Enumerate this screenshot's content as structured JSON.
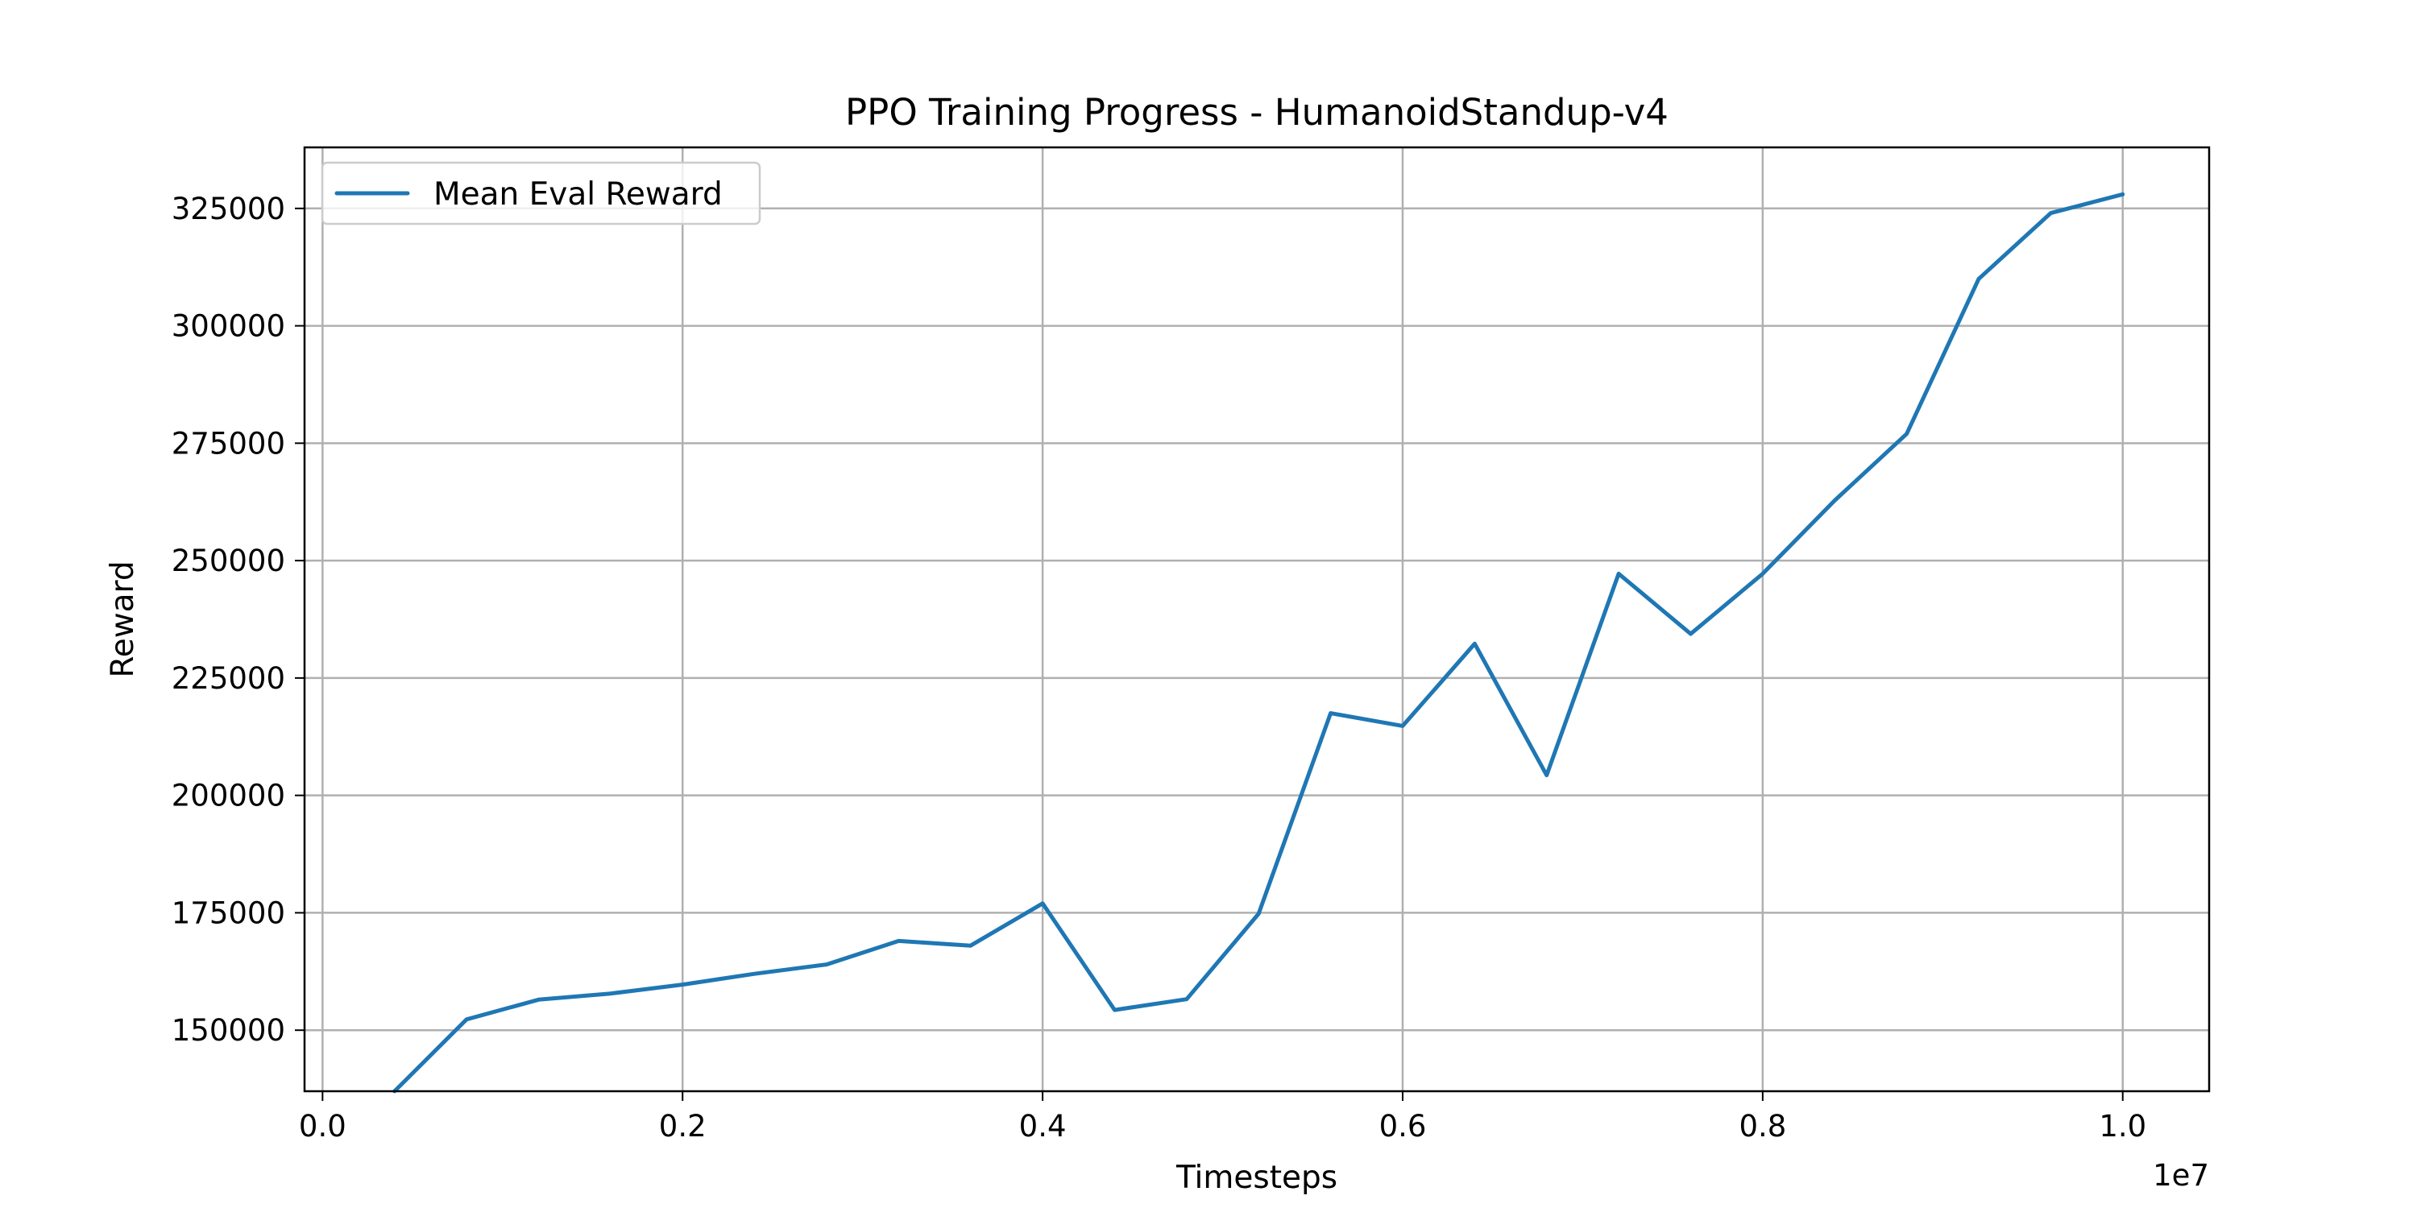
{
  "chart_data": {
    "type": "line",
    "title": "PPO Training Progress - HumanoidStandup-v4",
    "xlabel": "Timesteps",
    "ylabel": "Reward",
    "x_offset_label": "1e7",
    "xlim": [
      -0.01,
      1.048
    ],
    "ylim": [
      137000,
      338000
    ],
    "x_ticks": [
      0.0,
      0.2,
      0.4,
      0.6,
      0.8,
      1.0
    ],
    "x_tick_labels": [
      "0.0",
      "0.2",
      "0.4",
      "0.6",
      "0.8",
      "1.0"
    ],
    "y_ticks": [
      150000,
      175000,
      200000,
      225000,
      250000,
      275000,
      300000,
      325000
    ],
    "y_tick_labels": [
      "150000",
      "175000",
      "200000",
      "225000",
      "250000",
      "275000",
      "300000",
      "325000"
    ],
    "grid": true,
    "legend_position": "top-left",
    "series": [
      {
        "name": "Mean Eval Reward",
        "color": "#1f77b4",
        "x": [
          0.04,
          0.08,
          0.12,
          0.16,
          0.2,
          0.24,
          0.28,
          0.32,
          0.36,
          0.4,
          0.44,
          0.48,
          0.52,
          0.56,
          0.6,
          0.64,
          0.68,
          0.72,
          0.76,
          0.8,
          0.84,
          0.88,
          0.92,
          0.96,
          1.0
        ],
        "y": [
          137000,
          152300,
          156500,
          157800,
          159700,
          162000,
          164000,
          169000,
          168000,
          177000,
          154300,
          156600,
          174800,
          217500,
          214800,
          232300,
          204300,
          247200,
          234400,
          247200,
          262800,
          277000,
          310000,
          324000,
          328000
        ]
      }
    ]
  }
}
